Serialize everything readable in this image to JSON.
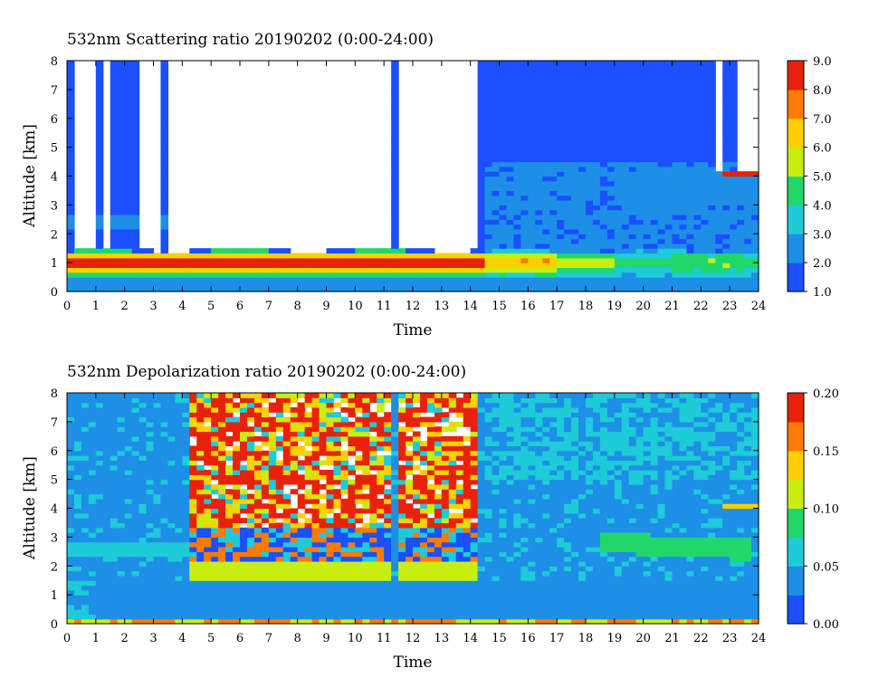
{
  "chart_data": [
    {
      "type": "heatmap",
      "title": "532nm Scattering ratio  20190202 (0:00-24:00)",
      "xlabel": "Time",
      "ylabel": "Altitude [km]",
      "xlim": [
        0,
        24
      ],
      "ylim": [
        0,
        8
      ],
      "x_ticks": [
        "0",
        "1",
        "2",
        "3",
        "4",
        "5",
        "6",
        "7",
        "8",
        "9",
        "10",
        "11",
        "12",
        "13",
        "14",
        "15",
        "16",
        "17",
        "18",
        "19",
        "20",
        "21",
        "22",
        "23",
        "24"
      ],
      "y_ticks": [
        "0",
        "1",
        "2",
        "3",
        "4",
        "5",
        "6",
        "7",
        "8"
      ],
      "colorbar": {
        "range": [
          1.0,
          9.0
        ],
        "ticks": [
          "1.0",
          "2.0",
          "3.0",
          "4.0",
          "5.0",
          "6.0",
          "7.0",
          "8.0",
          "9.0"
        ],
        "colors": [
          "#1a50ff",
          "#1d8fe6",
          "#1ecbd8",
          "#20d86a",
          "#c8ee10",
          "#ffd000",
          "#ff7a00",
          "#e8220a"
        ]
      },
      "clear_air_value": 1.6,
      "boundary_layer_top_km": 1.4,
      "no_signal_periods_hours": [
        [
          0.25,
          0.7
        ],
        [
          0.8,
          1.05
        ],
        [
          1.3,
          1.6
        ],
        [
          2.5,
          3.2
        ],
        [
          3.5,
          4.0
        ],
        [
          4.0,
          11.2
        ],
        [
          11.5,
          14.3
        ]
      ],
      "cloud_layer": {
        "time_start": 22.7,
        "time_end": 24,
        "base_km": 4.0,
        "value": 9.0
      }
    },
    {
      "type": "heatmap",
      "title": "532nm Depolarization ratio  20190202 (0:00-24:00)",
      "xlabel": "Time",
      "ylabel": "Altitude [km]",
      "xlim": [
        0,
        24
      ],
      "ylim": [
        0,
        8
      ],
      "x_ticks": [
        "0",
        "1",
        "2",
        "3",
        "4",
        "5",
        "6",
        "7",
        "8",
        "9",
        "10",
        "11",
        "12",
        "13",
        "14",
        "15",
        "16",
        "17",
        "18",
        "19",
        "20",
        "21",
        "22",
        "23",
        "24"
      ],
      "y_ticks": [
        "0",
        "1",
        "2",
        "3",
        "4",
        "5",
        "6",
        "7",
        "8"
      ],
      "colorbar": {
        "range": [
          0.0,
          0.2
        ],
        "ticks": [
          "0.00",
          "0.05",
          "0.10",
          "0.15",
          "0.20"
        ],
        "colors": [
          "#1a50ff",
          "#1d8fe6",
          "#1ecbd8",
          "#20d86a",
          "#c8ee10",
          "#ffd000",
          "#ff7a00",
          "#e8220a"
        ]
      },
      "background_value": 0.04,
      "noisy_periods_hours": [
        [
          4.2,
          11.2
        ],
        [
          11.5,
          14.3
        ]
      ],
      "aerosol_layer": {
        "time_start": 18.5,
        "time_end": 23.8,
        "altitude_km": 2.7,
        "value": 0.09
      }
    }
  ]
}
